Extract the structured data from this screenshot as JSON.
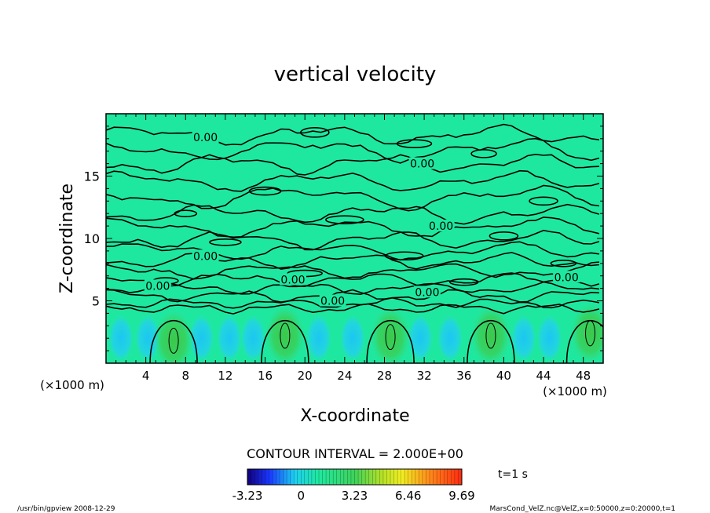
{
  "chart_data": {
    "type": "heatmap",
    "title": "vertical velocity",
    "xlabel": "X-coordinate",
    "ylabel": "Z-coordinate",
    "x_unit_left": "(×1000 m)",
    "x_unit_right": "(×1000 m)",
    "xlim": [
      0,
      50
    ],
    "ylim": [
      0,
      20
    ],
    "x_ticks": [
      "4",
      "8",
      "12",
      "16",
      "20",
      "24",
      "28",
      "32",
      "36",
      "40",
      "44",
      "48"
    ],
    "x_tick_values": [
      4,
      8,
      12,
      16,
      20,
      24,
      28,
      32,
      36,
      40,
      44,
      48
    ],
    "y_ticks": [
      "5",
      "10",
      "15"
    ],
    "y_tick_values": [
      5,
      10,
      15
    ],
    "contour_interval_text": "CONTOUR INTERVAL = 2.000E+00",
    "contour_labels": [
      {
        "text": "0.00",
        "x": 10.0,
        "y": 18.1
      },
      {
        "text": "0.00",
        "x": 31.8,
        "y": 16.0
      },
      {
        "text": "0.00",
        "x": 33.7,
        "y": 11.0
      },
      {
        "text": "0.00",
        "x": 10.0,
        "y": 8.6
      },
      {
        "text": "0.00",
        "x": 5.2,
        "y": 6.2
      },
      {
        "text": "0.00",
        "x": 18.8,
        "y": 6.7
      },
      {
        "text": "0.00",
        "x": 32.3,
        "y": 5.7
      },
      {
        "text": "0.00",
        "x": 22.8,
        "y": 5.0
      },
      {
        "text": "0.00",
        "x": 46.3,
        "y": 6.9
      }
    ],
    "updraft_cores": [
      {
        "x": 6.8,
        "z": 1.8
      },
      {
        "x": 18.0,
        "z": 2.2
      },
      {
        "x": 28.6,
        "z": 2.1
      },
      {
        "x": 38.7,
        "z": 2.2
      },
      {
        "x": 48.7,
        "z": 2.4
      }
    ],
    "colorbar": {
      "min": -3.23,
      "max": 9.69,
      "tick_labels": [
        "-3.23",
        "0",
        "3.23",
        "6.46",
        "9.69"
      ],
      "tick_values": [
        -3.23,
        0,
        3.23,
        6.46,
        9.69
      ]
    },
    "time_label": "t=1  s"
  },
  "footer": {
    "program": "/usr/bin/gpview   2008-12-29",
    "source": "MarsCond_VelZ.nc@VelZ,x=0:50000,z=0:20000,t=1"
  },
  "colors": {
    "background_field": "#1ee8a0",
    "updraft": "#2fd26a",
    "downdraft": "#22ccee",
    "contour": "#000000"
  }
}
